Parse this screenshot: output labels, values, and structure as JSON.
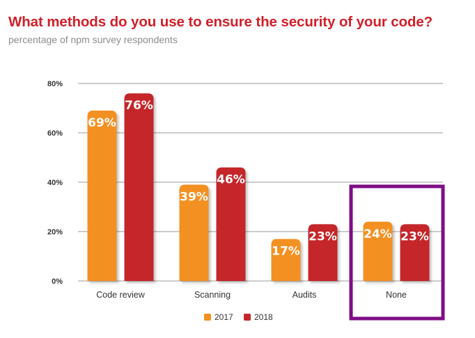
{
  "header": {
    "title": "What methods do you use to ensure the security of your code?",
    "subtitle": "percentage of npm survey respondents"
  },
  "colors": {
    "series_2017": "#f39021",
    "series_2018": "#c4262c",
    "highlight": "#7e0e86",
    "gridline": "#9a9a9a",
    "title": "#d0202a"
  },
  "chart_data": {
    "type": "bar",
    "title": "What methods do you use to ensure the security of your code?",
    "subtitle": "percentage of npm survey respondents",
    "categories": [
      "Code review",
      "Scanning",
      "Audits",
      "None"
    ],
    "series": [
      {
        "name": "2017",
        "values": [
          69,
          39,
          17,
          24
        ],
        "labels": [
          "69%",
          "39%",
          "17%",
          "24%"
        ]
      },
      {
        "name": "2018",
        "values": [
          76,
          46,
          23,
          23
        ],
        "labels": [
          "76%",
          "46%",
          "23%",
          "23%"
        ]
      }
    ],
    "yticks": [
      0,
      20,
      40,
      60,
      80
    ],
    "ytick_labels": [
      "0%",
      "20%",
      "40%",
      "60%",
      "80%"
    ],
    "ylim": [
      0,
      80
    ],
    "xlabel": "",
    "ylabel": "",
    "grid": true,
    "legend_position": "bottom",
    "highlighted_category": "None"
  }
}
